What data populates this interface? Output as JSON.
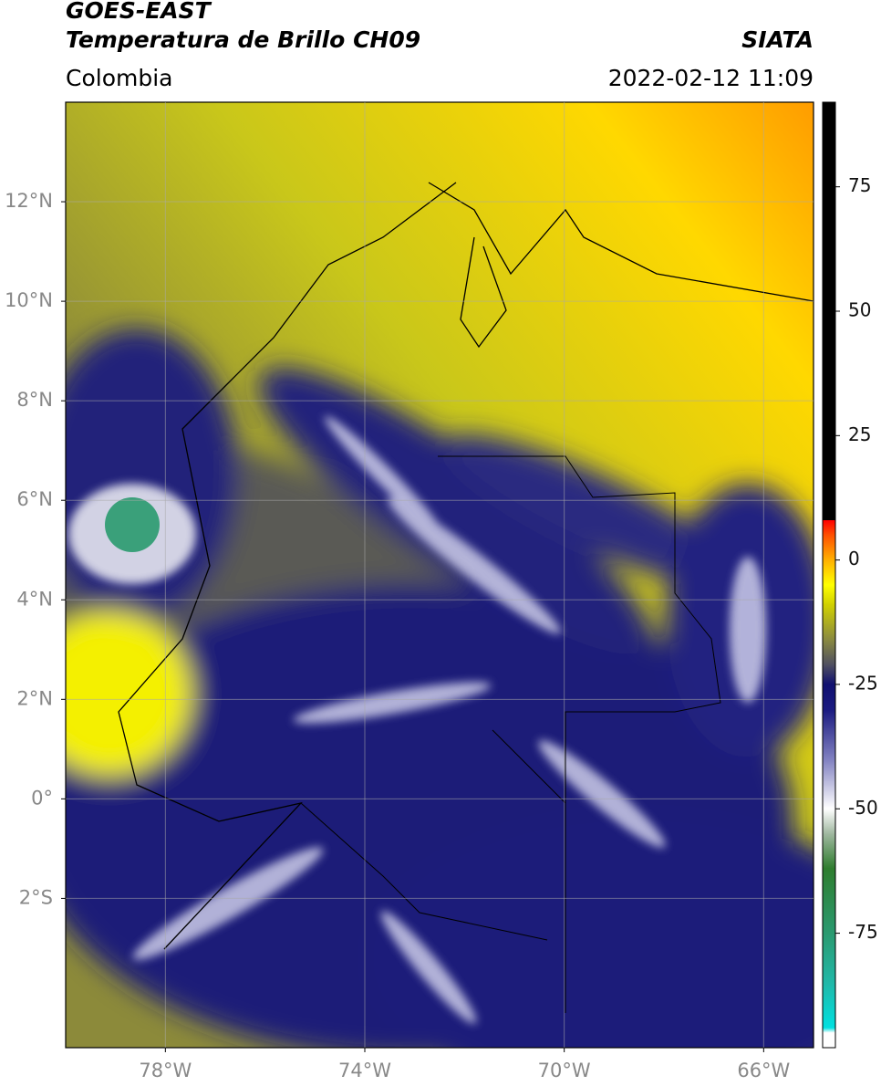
{
  "header": {
    "title": "GOES-EAST",
    "subtitle": "Temperatura de Brillo CH09",
    "source": "SIATA",
    "region": "Colombia",
    "datetime": "2022-02-12 11:09"
  },
  "map": {
    "xlim": [
      -80,
      -65
    ],
    "ylim": [
      -5,
      14
    ],
    "xticks": [
      {
        "value": -78,
        "label": "78°W"
      },
      {
        "value": -74,
        "label": "74°W"
      },
      {
        "value": -70,
        "label": "70°W"
      },
      {
        "value": -66,
        "label": "66°W"
      }
    ],
    "yticks": [
      {
        "value": 12,
        "label": "12°N"
      },
      {
        "value": 10,
        "label": "10°N"
      },
      {
        "value": 8,
        "label": "8°N"
      },
      {
        "value": 6,
        "label": "6°N"
      },
      {
        "value": 4,
        "label": "4°N"
      },
      {
        "value": 2,
        "label": "2°N"
      },
      {
        "value": 0,
        "label": "0°"
      },
      {
        "value": -2,
        "label": "2°S"
      }
    ],
    "grid": true
  },
  "colorbar": {
    "lim": [
      -98,
      92
    ],
    "ticks": [
      75,
      50,
      25,
      0,
      -25,
      -50,
      -75
    ],
    "colormap": [
      {
        "value": -98,
        "color": "#ffffff"
      },
      {
        "value": -95,
        "color": "#ffffff"
      },
      {
        "value": -94,
        "color": "#00e0e0"
      },
      {
        "value": -85,
        "color": "#20b8a8"
      },
      {
        "value": -75,
        "color": "#2a9a70"
      },
      {
        "value": -62,
        "color": "#2e7d2e"
      },
      {
        "value": -55,
        "color": "#a0b8a0"
      },
      {
        "value": -50,
        "color": "#ffffff"
      },
      {
        "value": -40,
        "color": "#8080c0"
      },
      {
        "value": -30,
        "color": "#1a1a80"
      },
      {
        "value": -25,
        "color": "#101070"
      },
      {
        "value": -21,
        "color": "#505060"
      },
      {
        "value": -16,
        "color": "#8a8a40"
      },
      {
        "value": -9,
        "color": "#d0d000"
      },
      {
        "value": -5,
        "color": "#ffff00"
      },
      {
        "value": 0,
        "color": "#ffb000"
      },
      {
        "value": 5,
        "color": "#ff5000"
      },
      {
        "value": 8,
        "color": "#ff0000"
      },
      {
        "value": 8,
        "color": "#000000"
      },
      {
        "value": 92,
        "color": "#000000"
      }
    ]
  }
}
